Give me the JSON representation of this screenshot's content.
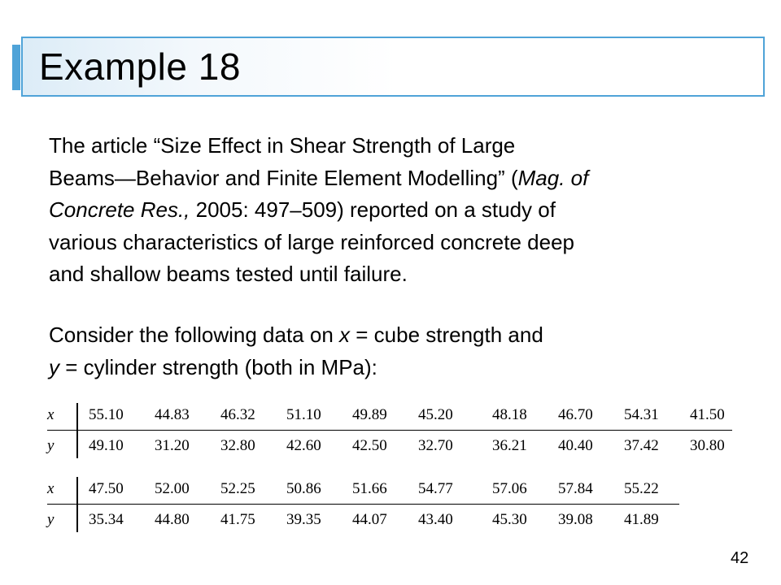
{
  "title": "Example 18",
  "paragraph1": {
    "line1": "The article “Size Effect in Shear Strength of Large",
    "line2a": "Beams—Behavior and Finite Element Modelling” (",
    "line2_italic": "Mag. of",
    "line3_italic": "Concrete Res.,",
    "line3b": " 2005: 497–509) reported on a study of",
    "line4": "various characteristics of large reinforced concrete deep",
    "line5": "and shallow beams tested until failure."
  },
  "paragraph2": {
    "line1a": "Consider the following data on ",
    "line1_var": "x",
    "line1b": " = cube strength and",
    "line2_var": "y",
    "line2b": " = cylinder strength (both in MPa):"
  },
  "table": {
    "x_label": "x",
    "y_label": "y",
    "block1": {
      "x": [
        "55.10",
        "44.83",
        "46.32",
        "51.10",
        "49.89",
        "45.20",
        "48.18",
        "46.70",
        "54.31",
        "41.50"
      ],
      "y": [
        "49.10",
        "31.20",
        "32.80",
        "42.60",
        "42.50",
        "32.70",
        "36.21",
        "40.40",
        "37.42",
        "30.80"
      ]
    },
    "block2": {
      "x": [
        "47.50",
        "52.00",
        "52.25",
        "50.86",
        "51.66",
        "54.77",
        "57.06",
        "57.84",
        "55.22"
      ],
      "y": [
        "35.34",
        "44.80",
        "41.75",
        "39.35",
        "44.07",
        "43.40",
        "45.30",
        "39.08",
        "41.89"
      ]
    }
  },
  "page_number": "42"
}
